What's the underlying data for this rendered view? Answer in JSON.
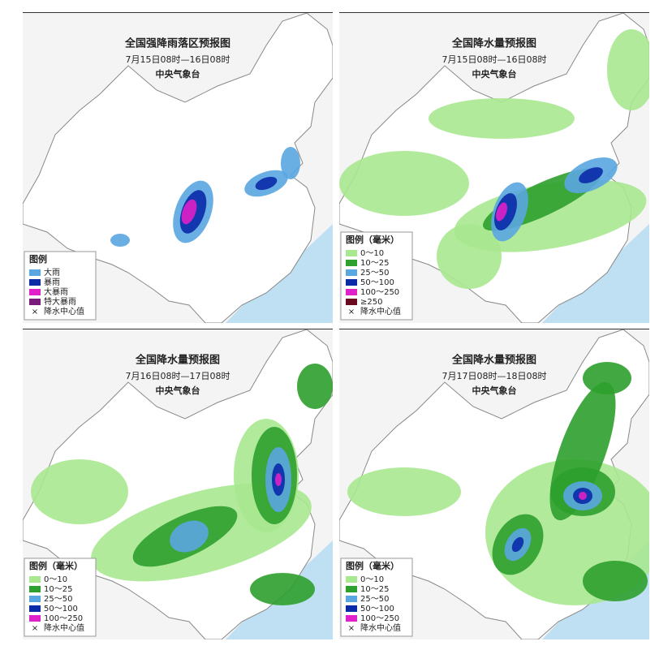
{
  "panels": [
    {
      "title": "全国强降雨落区预报图",
      "date": "7月15日08时—16日08时",
      "agency": "中央气象台",
      "legend": {
        "title": "图例",
        "items": [
          {
            "label": "大雨",
            "color": "#5aa6e0"
          },
          {
            "label": "暴雨",
            "color": "#0a2aa8"
          },
          {
            "label": "大暴雨",
            "color": "#e020c8"
          },
          {
            "label": "特大暴雨",
            "color": "#7a1a7a"
          },
          {
            "marker": "×",
            "label": "降水中心值"
          }
        ]
      }
    },
    {
      "title": "全国降水量预报图",
      "date": "7月15日08时—16日08时",
      "agency": "中央气象台",
      "legend": {
        "title": "图例（毫米）",
        "items": [
          {
            "label": "0～10",
            "color": "#a8e890"
          },
          {
            "label": "10～25",
            "color": "#2ea02e"
          },
          {
            "label": "25～50",
            "color": "#5aa6e0"
          },
          {
            "label": "50～100",
            "color": "#0a2aa8"
          },
          {
            "label": "100～250",
            "color": "#e020c8"
          },
          {
            "label": "≥250",
            "color": "#6a0a20"
          },
          {
            "marker": "×",
            "label": "降水中心值"
          }
        ]
      }
    },
    {
      "title": "全国降水量预报图",
      "date": "7月16日08时—17日08时",
      "agency": "中央气象台",
      "legend": {
        "title": "图例（毫米）",
        "items": [
          {
            "label": "0～10",
            "color": "#a8e890"
          },
          {
            "label": "10～25",
            "color": "#2ea02e"
          },
          {
            "label": "25～50",
            "color": "#5aa6e0"
          },
          {
            "label": "50～100",
            "color": "#0a2aa8"
          },
          {
            "label": "100～250",
            "color": "#e020c8"
          },
          {
            "marker": "×",
            "label": "降水中心值"
          }
        ]
      }
    },
    {
      "title": "全国降水量预报图",
      "date": "7月17日08时—18日08时",
      "agency": "中央气象台",
      "legend": {
        "title": "图例（毫米）",
        "items": [
          {
            "label": "0～10",
            "color": "#a8e890"
          },
          {
            "label": "10～25",
            "color": "#2ea02e"
          },
          {
            "label": "25～50",
            "color": "#5aa6e0"
          },
          {
            "label": "50～100",
            "color": "#0a2aa8"
          },
          {
            "label": "100～250",
            "color": "#e020c8"
          },
          {
            "marker": "×",
            "label": "降水中心值"
          }
        ]
      }
    }
  ]
}
